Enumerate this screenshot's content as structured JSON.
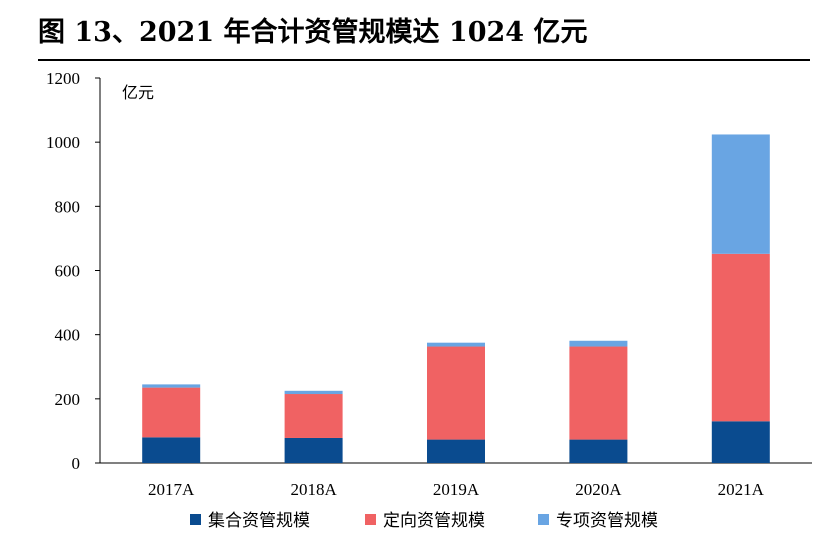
{
  "figure": {
    "title": "图 13、2021 年合计资管规模达 1024 亿元"
  },
  "chart_data": {
    "type": "bar",
    "stacked": true,
    "categories": [
      "2017A",
      "2018A",
      "2019A",
      "2020A",
      "2021A"
    ],
    "series": [
      {
        "name": "集合资管规模",
        "color": "#0a4b8f",
        "values": [
          80,
          78,
          73,
          73,
          130
        ]
      },
      {
        "name": "定向资管规模",
        "color": "#f06263",
        "values": [
          155,
          137,
          290,
          290,
          522
        ]
      },
      {
        "name": "专项资管规模",
        "color": "#69a5e3",
        "values": [
          10,
          10,
          12,
          18,
          372
        ]
      }
    ],
    "ylim": [
      0,
      1200
    ],
    "yticks": [
      0,
      200,
      400,
      600,
      800,
      1000,
      1200
    ],
    "ylabel": "亿元",
    "xlabel": "",
    "grid": false,
    "legend_position": "bottom"
  }
}
